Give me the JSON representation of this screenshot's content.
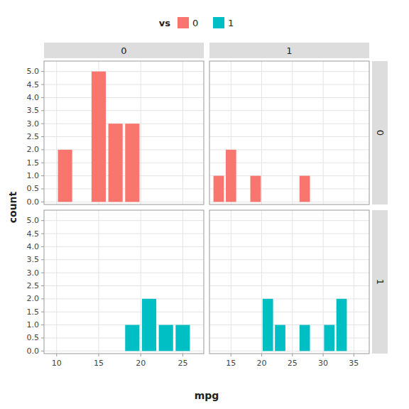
{
  "chart_data": [
    {
      "type": "histogram",
      "title": "0",
      "bins": [
        10,
        12,
        14,
        16,
        18,
        20,
        22,
        24,
        26
      ],
      "series": [
        {
          "name": "0",
          "color": "#F8766D",
          "values": [
            2,
            0,
            5,
            3,
            3,
            0,
            0,
            0
          ]
        }
      ],
      "xlim": [
        8.5,
        27.5
      ],
      "xticks": [
        10,
        15,
        20,
        25
      ],
      "ylim": [
        -0.1,
        5.4
      ],
      "yticks": [
        {
          "value": 0.0,
          "label": "0.0"
        },
        0.5,
        {
          "value": 1.0,
          "label": "1.0"
        },
        1.5,
        {
          "value": 2.0,
          "label": "2.0"
        },
        2.5,
        {
          "value": 3.0,
          "label": "3.0"
        },
        3.5,
        {
          "value": 4.0,
          "label": "4.0"
        },
        4.5,
        {
          "value": 5.0,
          "label": "5.0"
        }
      ],
      "grid": true,
      "tick_labels": "y",
      "legend": "top",
      "annotations": [
        "vs"
      ]
    },
    {
      "type": "histogram",
      "title": "1",
      "bins": [
        12,
        14,
        16,
        18,
        20,
        22,
        24,
        26,
        28,
        30,
        32,
        34,
        36
      ],
      "series": [
        {
          "color": "#F8766D",
          "values": [
            1,
            2,
            0,
            1,
            0,
            0,
            0,
            1,
            0,
            0,
            0,
            0
          ]
        }
      ],
      "xlim": [
        11.5,
        37.5
      ],
      "xticks": [
        15,
        20,
        25,
        30,
        35
      ],
      "ylim": [
        -0.1,
        5.4
      ],
      "yticks": [
        {
          "value": 0.0,
          "label": "0.0"
        },
        0.5,
        {
          "value": 1.0,
          "label": "1.0"
        },
        1.5,
        {
          "value": 2.0,
          "label": "2.0"
        },
        2.5,
        {
          "value": 3.0,
          "label": "3.0"
        },
        3.5,
        {
          "value": 4.0,
          "label": "4.0"
        },
        4.5,
        {
          "value": 5.0,
          "label": "5.0"
        }
      ],
      "grid": true,
      "tick_labels": false,
      "annotations": [
        "0"
      ]
    },
    {
      "type": "histogram",
      "xlabel": "mpg",
      "ylabel": "count",
      "bins": [
        10,
        12,
        14,
        16,
        18,
        20,
        22,
        24,
        26
      ],
      "series": [
        {
          "name": "1",
          "color": "#00BFC4",
          "values": [
            0,
            0,
            0,
            0,
            1,
            2,
            1,
            1
          ]
        }
      ],
      "xlim": [
        8.5,
        27.5
      ],
      "xticks": [
        10,
        15,
        20,
        25
      ],
      "ylim": [
        -0.1,
        5.4
      ],
      "yticks": [
        {
          "value": 0.0,
          "label": "0.0"
        },
        0.5,
        {
          "value": 1.0,
          "label": "1.0"
        },
        1.5,
        {
          "value": 2.0,
          "label": "2.0"
        },
        2.5,
        {
          "value": 3.0,
          "label": "3.0"
        },
        3.5,
        {
          "value": 4.0,
          "label": "4.0"
        },
        4.5,
        {
          "value": 5.0,
          "label": "5.0"
        }
      ],
      "grid": true,
      "tick_labels": true
    },
    {
      "type": "histogram",
      "bins": [
        12,
        14,
        16,
        18,
        20,
        22,
        24,
        26,
        28,
        30,
        32,
        34,
        36
      ],
      "series": [
        {
          "color": "#00BFC4",
          "values": [
            0,
            0,
            0,
            0,
            2,
            1,
            0,
            1,
            0,
            1,
            2,
            0
          ]
        }
      ],
      "xlim": [
        11.5,
        37.5
      ],
      "xticks": [
        15,
        20,
        25,
        30,
        35
      ],
      "ylim": [
        -0.1,
        5.4
      ],
      "yticks": [
        {
          "value": 0.0,
          "label": "0.0"
        },
        0.5,
        {
          "value": 1.0,
          "label": "1.0"
        },
        1.5,
        {
          "value": 2.0,
          "label": "2.0"
        },
        2.5,
        {
          "value": 3.0,
          "label": "3.0"
        },
        3.5,
        {
          "value": 4.0,
          "label": "4.0"
        },
        4.5,
        {
          "value": 5.0,
          "label": "5.0"
        }
      ],
      "grid": true,
      "tick_labels": "x",
      "annotations": [
        "1"
      ]
    }
  ]
}
